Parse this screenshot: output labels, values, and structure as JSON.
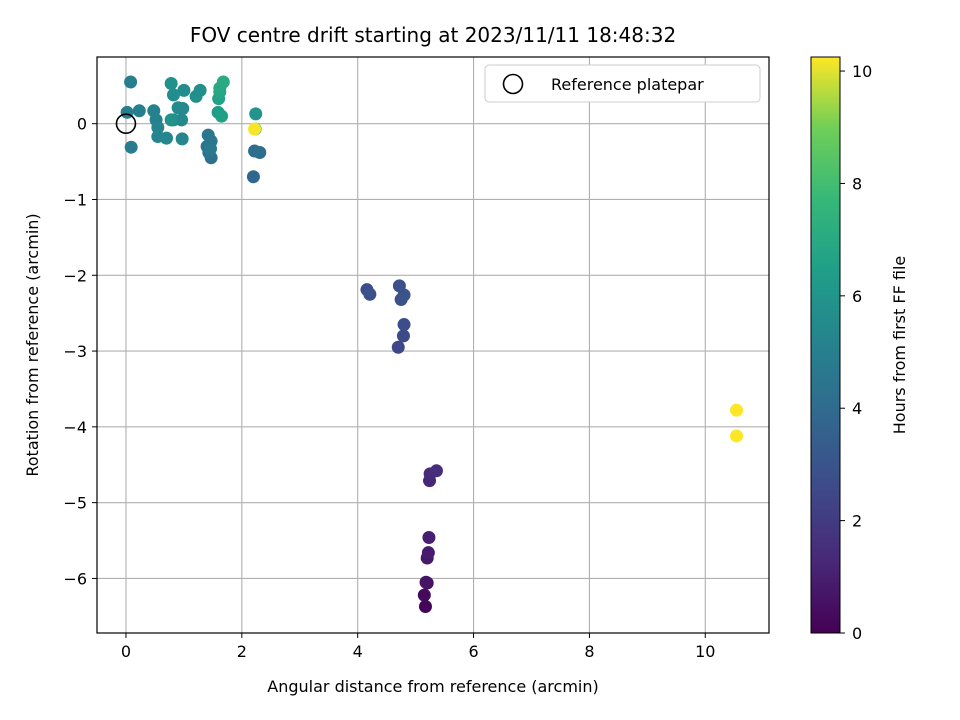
{
  "chart_data": {
    "type": "scatter",
    "title": "FOV centre drift starting at 2023/11/11 18:48:32",
    "xlabel": "Angular distance from reference (arcmin)",
    "ylabel": "Rotation from reference (arcmin)",
    "xlim": [
      -0.5,
      11.1
    ],
    "ylim": [
      -6.72,
      0.88
    ],
    "xticks": [
      0,
      2,
      4,
      6,
      8,
      10
    ],
    "yticks": [
      0,
      -1,
      -2,
      -3,
      -4,
      -5,
      -6
    ],
    "xtick_labels": [
      "0",
      "2",
      "4",
      "6",
      "8",
      "10"
    ],
    "ytick_labels": [
      "0",
      "−1",
      "−2",
      "−3",
      "−4",
      "−5",
      "−6"
    ],
    "grid": true,
    "legend": {
      "position": "top-right",
      "entries": [
        "Reference platepar"
      ]
    },
    "colorbar": {
      "label": "Hours from first FF file",
      "range": [
        0,
        10.25
      ],
      "ticks": [
        0,
        2,
        4,
        6,
        8,
        10
      ],
      "tick_labels": [
        "0",
        "2",
        "4",
        "6",
        "8",
        "10"
      ],
      "colormap": "viridis"
    },
    "reference_point": {
      "x": 0,
      "y": 0,
      "label": "Reference platepar"
    },
    "points": [
      {
        "x": 5.17,
        "y": -6.37,
        "t": 0.1
      },
      {
        "x": 5.15,
        "y": -6.22,
        "t": 0.3
      },
      {
        "x": 5.2,
        "y": -6.06,
        "t": 0.5
      },
      {
        "x": 5.18,
        "y": -6.05,
        "t": 0.6
      },
      {
        "x": 5.2,
        "y": -5.73,
        "t": 0.8
      },
      {
        "x": 5.22,
        "y": -5.66,
        "t": 0.9
      },
      {
        "x": 5.23,
        "y": -5.46,
        "t": 1.0
      },
      {
        "x": 5.24,
        "y": -4.71,
        "t": 1.2
      },
      {
        "x": 5.25,
        "y": -4.62,
        "t": 1.4
      },
      {
        "x": 5.36,
        "y": -4.58,
        "t": 1.5
      },
      {
        "x": 4.7,
        "y": -2.95,
        "t": 2.5
      },
      {
        "x": 4.79,
        "y": -2.8,
        "t": 2.6
      },
      {
        "x": 4.8,
        "y": -2.65,
        "t": 2.7
      },
      {
        "x": 4.75,
        "y": -2.32,
        "t": 2.8
      },
      {
        "x": 4.8,
        "y": -2.26,
        "t": 2.9
      },
      {
        "x": 4.72,
        "y": -2.14,
        "t": 2.8
      },
      {
        "x": 4.16,
        "y": -2.19,
        "t": 2.7
      },
      {
        "x": 4.21,
        "y": -2.25,
        "t": 2.8
      },
      {
        "x": 2.2,
        "y": -0.7,
        "t": 3.8
      },
      {
        "x": 2.22,
        "y": -0.36,
        "t": 4.1
      },
      {
        "x": 2.31,
        "y": -0.38,
        "t": 4.2
      },
      {
        "x": 1.47,
        "y": -0.45,
        "t": 4.3
      },
      {
        "x": 1.43,
        "y": -0.38,
        "t": 4.4
      },
      {
        "x": 1.4,
        "y": -0.3,
        "t": 4.5
      },
      {
        "x": 1.47,
        "y": -0.23,
        "t": 4.6
      },
      {
        "x": 1.42,
        "y": -0.15,
        "t": 4.6
      },
      {
        "x": 1.46,
        "y": -0.33,
        "t": 4.7
      },
      {
        "x": 0.09,
        "y": -0.31,
        "t": 4.8
      },
      {
        "x": 0.02,
        "y": 0.15,
        "t": 4.9
      },
      {
        "x": 0.08,
        "y": 0.55,
        "t": 5.0
      },
      {
        "x": 0.23,
        "y": 0.17,
        "t": 5.0
      },
      {
        "x": 0.48,
        "y": 0.17,
        "t": 5.1
      },
      {
        "x": 0.52,
        "y": 0.05,
        "t": 5.1
      },
      {
        "x": 0.55,
        "y": -0.05,
        "t": 5.2
      },
      {
        "x": 0.55,
        "y": -0.17,
        "t": 5.2
      },
      {
        "x": 0.7,
        "y": -0.19,
        "t": 5.3
      },
      {
        "x": 0.97,
        "y": -0.2,
        "t": 5.3
      },
      {
        "x": 0.82,
        "y": 0.05,
        "t": 5.4
      },
      {
        "x": 0.96,
        "y": 0.05,
        "t": 5.4
      },
      {
        "x": 0.9,
        "y": 0.21,
        "t": 5.5
      },
      {
        "x": 0.98,
        "y": 0.2,
        "t": 5.5
      },
      {
        "x": 0.82,
        "y": 0.38,
        "t": 5.6
      },
      {
        "x": 1.0,
        "y": 0.44,
        "t": 5.6
      },
      {
        "x": 1.21,
        "y": 0.36,
        "t": 5.7
      },
      {
        "x": 1.28,
        "y": 0.44,
        "t": 5.7
      },
      {
        "x": 0.78,
        "y": 0.53,
        "t": 5.8
      },
      {
        "x": 0.78,
        "y": 0.05,
        "t": 5.9
      },
      {
        "x": 1.59,
        "y": 0.15,
        "t": 6.3
      },
      {
        "x": 1.65,
        "y": 0.1,
        "t": 6.5
      },
      {
        "x": 1.6,
        "y": 0.33,
        "t": 6.6
      },
      {
        "x": 1.62,
        "y": 0.42,
        "t": 6.8
      },
      {
        "x": 1.62,
        "y": 0.47,
        "t": 6.9
      },
      {
        "x": 1.68,
        "y": 0.55,
        "t": 7.0
      },
      {
        "x": 2.24,
        "y": 0.13,
        "t": 6.0
      },
      {
        "x": 2.23,
        "y": -0.07,
        "t": 7.5
      },
      {
        "x": 2.22,
        "y": -0.07,
        "t": 10.2
      },
      {
        "x": 10.54,
        "y": -3.78,
        "t": 10.25
      },
      {
        "x": 10.54,
        "y": -4.12,
        "t": 10.25
      }
    ]
  }
}
